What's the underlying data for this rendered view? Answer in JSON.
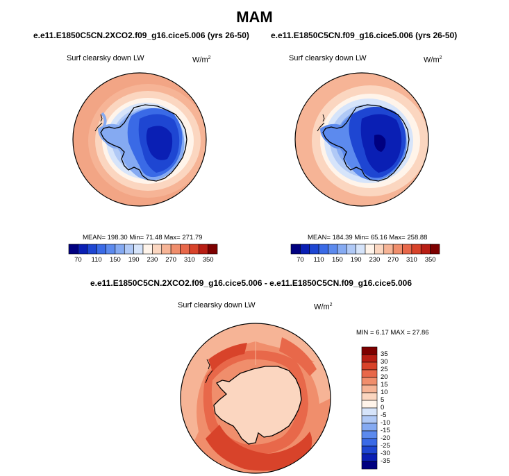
{
  "title": "MAM",
  "panels": [
    {
      "case": "e.e11.E1850C5CN.2XCO2.f09_g16.cice5.006 (yrs 26-50)",
      "variable": "Surf clearsky down LW",
      "units": "W/m",
      "units_sup": "2",
      "stats": "MEAN= 198.30  Min=  71.48  Max= 271.79"
    },
    {
      "case": "e.e11.E1850C5CN.f09_g16.cice5.006 (yrs 26-50)",
      "variable": "Surf clearsky down LW",
      "units": "W/m",
      "units_sup": "2",
      "stats": "MEAN= 184.39  Min=  65.16  Max= 258.88"
    },
    {
      "case": "e.e11.E1850C5CN.2XCO2.f09_g16.cice5.006 - e.e11.E1850C5CN.f09_g16.cice5.006",
      "variable": "Surf clearsky down LW",
      "units": "W/m",
      "units_sup": "2",
      "stats": "MIN =  6.17 MAX =  27.86"
    }
  ],
  "colorbar_top": {
    "ticks": [
      "70",
      "110",
      "150",
      "190",
      "230",
      "270",
      "310",
      "350"
    ],
    "colors": [
      "#000080",
      "#0a1fb4",
      "#1e46d2",
      "#3a6ae6",
      "#5c8aee",
      "#85aaf2",
      "#b0c9f6",
      "#d6e4fa",
      "#fff4ea",
      "#fbd6c0",
      "#f6b496",
      "#f08e6c",
      "#e8684a",
      "#d8432a",
      "#b81e14",
      "#7d0000"
    ]
  },
  "colorbar_diff": {
    "ticks": [
      "35",
      "30",
      "25",
      "20",
      "15",
      "10",
      "5",
      "0",
      "-5",
      "-10",
      "-15",
      "-20",
      "-25",
      "-30",
      "-35"
    ],
    "colors": [
      "#7d0000",
      "#b81e14",
      "#d8432a",
      "#e8684a",
      "#f08e6c",
      "#f6b496",
      "#fbd6c0",
      "#fff4ea",
      "#d6e4fa",
      "#b0c9f6",
      "#85aaf2",
      "#5c8aee",
      "#3a6ae6",
      "#1e46d2",
      "#0a1fb4",
      "#000080"
    ]
  }
}
